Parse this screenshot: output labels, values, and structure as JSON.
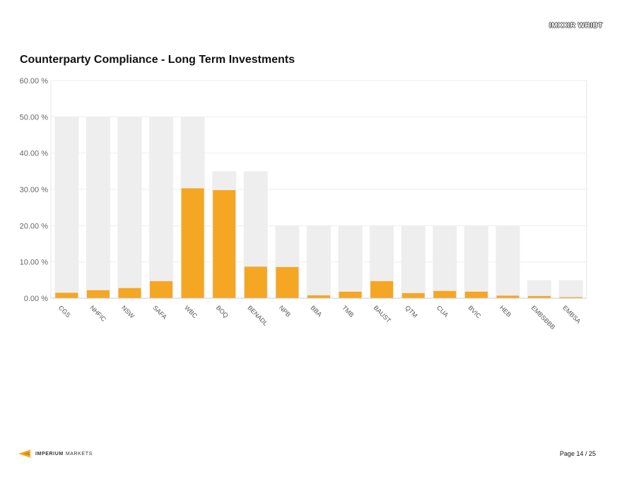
{
  "header": {
    "corner_label": "IMXXIR WRIBT"
  },
  "chart_data": {
    "type": "bar",
    "title": "Counterparty Compliance - Long Term Investments",
    "categories": [
      "CGS",
      "NHFIC",
      "NSW",
      "SAFA",
      "WBC",
      "BOQ",
      "BENADL",
      "NPB",
      "BBA",
      "TMB",
      "BAUST",
      "QTM",
      "CUA",
      "BVIC",
      "HEB",
      "EMBSBBB",
      "EMBSA"
    ],
    "series": [
      {
        "role": "limit",
        "values": [
          50,
          50,
          50,
          50,
          50,
          35,
          35,
          20,
          20,
          20,
          20,
          20,
          20,
          20,
          20,
          5,
          5
        ]
      },
      {
        "role": "actual",
        "values": [
          1.5,
          2.2,
          2.8,
          4.7,
          30.3,
          29.8,
          8.7,
          8.6,
          0.8,
          1.8,
          4.7,
          1.4,
          2.0,
          1.8,
          0.7,
          0.6,
          0.3
        ]
      }
    ],
    "ylim": [
      0,
      60
    ],
    "yticks": [
      "0.00 %",
      "10.00 %",
      "20.00 %",
      "30.00 %",
      "40.00 %",
      "50.00 %",
      "60.00 %"
    ],
    "ytick_values": [
      0,
      10,
      20,
      30,
      40,
      50,
      60
    ],
    "grid": true,
    "colors": {
      "limit": "#eeeeee",
      "actual": "#f5a623",
      "grid": "#eeeeee",
      "axis": "#cccccc",
      "tick_text": "#666666"
    }
  },
  "footer": {
    "brand_name": "IMPERIUM",
    "brand_suffix": "MARKETS",
    "page": "Page 14 / 25"
  }
}
